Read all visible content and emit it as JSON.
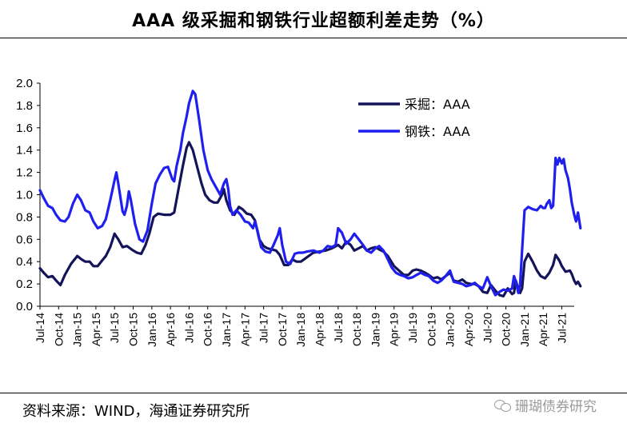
{
  "header": {
    "title": "AAA 级采掘和钢铁行业超额利差走势（%）"
  },
  "footer": {
    "source": "资料来源：WIND，海通证券研究所"
  },
  "watermark": {
    "text": "珊瑚债券研究",
    "icon": "wechat-icon"
  },
  "chart_data": {
    "type": "line",
    "title": "AAA 级采掘和钢铁行业超额利差走势（%）",
    "ylim": [
      0,
      2.0
    ],
    "yticks": [
      "0.0",
      "0.2",
      "0.4",
      "0.6",
      "0.8",
      "1.0",
      "1.2",
      "1.4",
      "1.6",
      "1.8",
      "2.0"
    ],
    "xlim": [
      0,
      86
    ],
    "xticks": [
      {
        "label": "Jul-14",
        "x": 0
      },
      {
        "label": "Oct-14",
        "x": 3
      },
      {
        "label": "Jan-15",
        "x": 6
      },
      {
        "label": "Apr-15",
        "x": 9
      },
      {
        "label": "Jul-15",
        "x": 12
      },
      {
        "label": "Oct-15",
        "x": 15
      },
      {
        "label": "Jan-16",
        "x": 18
      },
      {
        "label": "Apr-16",
        "x": 21
      },
      {
        "label": "Jul-16",
        "x": 24
      },
      {
        "label": "Oct-16",
        "x": 27
      },
      {
        "label": "Jan-17",
        "x": 30
      },
      {
        "label": "Apr-17",
        "x": 33
      },
      {
        "label": "Jul-17",
        "x": 36
      },
      {
        "label": "Oct-17",
        "x": 39
      },
      {
        "label": "Jan-18",
        "x": 42
      },
      {
        "label": "Apr-18",
        "x": 45
      },
      {
        "label": "Jul-18",
        "x": 48
      },
      {
        "label": "Oct-18",
        "x": 51
      },
      {
        "label": "Jan-19",
        "x": 54
      },
      {
        "label": "Apr-19",
        "x": 57
      },
      {
        "label": "Jul-19",
        "x": 60
      },
      {
        "label": "Oct-19",
        "x": 63
      },
      {
        "label": "Jan-20",
        "x": 66
      },
      {
        "label": "Apr-20",
        "x": 69
      },
      {
        "label": "Jul-20",
        "x": 72
      },
      {
        "label": "Oct-20",
        "x": 75
      },
      {
        "label": "Jan-21",
        "x": 78
      },
      {
        "label": "Apr-21",
        "x": 81
      },
      {
        "label": "Jul-21",
        "x": 84
      }
    ],
    "legend_position": "top-right",
    "series": [
      {
        "name": "采掘：AAA",
        "color": "#14145a",
        "points": [
          [
            0,
            0.34
          ],
          [
            0.6,
            0.3
          ],
          [
            1.3,
            0.26
          ],
          [
            2,
            0.27
          ],
          [
            2.6,
            0.23
          ],
          [
            3.3,
            0.19
          ],
          [
            4,
            0.28
          ],
          [
            5,
            0.38
          ],
          [
            6,
            0.45
          ],
          [
            6.7,
            0.42
          ],
          [
            7.3,
            0.4
          ],
          [
            8,
            0.4
          ],
          [
            8.6,
            0.36
          ],
          [
            9.3,
            0.36
          ],
          [
            10,
            0.41
          ],
          [
            10.6,
            0.45
          ],
          [
            11.3,
            0.53
          ],
          [
            12,
            0.65
          ],
          [
            12.6,
            0.6
          ],
          [
            13.3,
            0.53
          ],
          [
            14,
            0.54
          ],
          [
            15,
            0.5
          ],
          [
            15.6,
            0.48
          ],
          [
            16.3,
            0.47
          ],
          [
            17,
            0.55
          ],
          [
            17.6,
            0.65
          ],
          [
            18.3,
            0.8
          ],
          [
            19,
            0.83
          ],
          [
            20,
            0.82
          ],
          [
            21,
            0.82
          ],
          [
            21.6,
            0.84
          ],
          [
            22.3,
            1.05
          ],
          [
            23,
            1.26
          ],
          [
            23.6,
            1.42
          ],
          [
            24,
            1.47
          ],
          [
            24.6,
            1.4
          ],
          [
            25.3,
            1.25
          ],
          [
            26,
            1.1
          ],
          [
            26.6,
            1.0
          ],
          [
            27.3,
            0.95
          ],
          [
            28,
            0.93
          ],
          [
            28.6,
            0.93
          ],
          [
            29.3,
            1.0
          ],
          [
            29.6,
            1.05
          ],
          [
            30,
            0.95
          ],
          [
            30.6,
            0.86
          ],
          [
            31.3,
            0.82
          ],
          [
            32,
            0.89
          ],
          [
            32.6,
            0.87
          ],
          [
            33.3,
            0.83
          ],
          [
            34,
            0.82
          ],
          [
            34.6,
            0.77
          ],
          [
            35.3,
            0.6
          ],
          [
            36,
            0.54
          ],
          [
            36.6,
            0.52
          ],
          [
            37.3,
            0.51
          ],
          [
            38,
            0.5
          ],
          [
            38.6,
            0.46
          ],
          [
            39.3,
            0.37
          ],
          [
            40,
            0.37
          ],
          [
            40.6,
            0.42
          ],
          [
            41.3,
            0.4
          ],
          [
            42,
            0.4
          ],
          [
            43,
            0.44
          ],
          [
            44,
            0.48
          ],
          [
            45,
            0.49
          ],
          [
            46,
            0.5
          ],
          [
            47,
            0.52
          ],
          [
            48,
            0.55
          ],
          [
            48.6,
            0.52
          ],
          [
            49.3,
            0.58
          ],
          [
            50,
            0.55
          ],
          [
            50.6,
            0.5
          ],
          [
            51.3,
            0.52
          ],
          [
            52,
            0.54
          ],
          [
            52.6,
            0.5
          ],
          [
            53.3,
            0.52
          ],
          [
            54,
            0.53
          ],
          [
            54.6,
            0.51
          ],
          [
            55.3,
            0.49
          ],
          [
            56,
            0.45
          ],
          [
            57,
            0.36
          ],
          [
            58,
            0.31
          ],
          [
            58.6,
            0.28
          ],
          [
            59.3,
            0.28
          ],
          [
            60,
            0.32
          ],
          [
            60.6,
            0.33
          ],
          [
            61.3,
            0.32
          ],
          [
            62,
            0.3
          ],
          [
            62.6,
            0.28
          ],
          [
            63.3,
            0.25
          ],
          [
            64,
            0.26
          ],
          [
            64.6,
            0.24
          ],
          [
            65.3,
            0.27
          ],
          [
            66,
            0.3
          ],
          [
            66.6,
            0.23
          ],
          [
            67.3,
            0.22
          ],
          [
            68,
            0.24
          ],
          [
            68.6,
            0.21
          ],
          [
            69.3,
            0.2
          ],
          [
            70,
            0.2
          ],
          [
            70.6,
            0.18
          ],
          [
            71.3,
            0.13
          ],
          [
            72,
            0.12
          ],
          [
            72.6,
            0.19
          ],
          [
            73.3,
            0.14
          ],
          [
            74,
            0.1
          ],
          [
            74.6,
            0.09
          ],
          [
            75.3,
            0.16
          ],
          [
            76,
            0.11
          ],
          [
            76.3,
            0.12
          ],
          [
            76.6,
            0.23
          ],
          [
            77,
            0.15
          ],
          [
            77.3,
            0.12
          ],
          [
            77.6,
            0.16
          ],
          [
            78,
            0.4
          ],
          [
            78.6,
            0.47
          ],
          [
            79.3,
            0.4
          ],
          [
            80,
            0.32
          ],
          [
            80.6,
            0.27
          ],
          [
            81.3,
            0.25
          ],
          [
            82,
            0.3
          ],
          [
            82.6,
            0.37
          ],
          [
            83,
            0.46
          ],
          [
            83.6,
            0.41
          ],
          [
            84,
            0.36
          ],
          [
            84.6,
            0.31
          ],
          [
            85.3,
            0.32
          ],
          [
            85.6,
            0.29
          ],
          [
            86,
            0.23
          ],
          [
            86.3,
            0.2
          ],
          [
            86.6,
            0.22
          ],
          [
            87,
            0.18
          ]
        ]
      },
      {
        "name": "钢铁：AAA",
        "color": "#1f1ff0",
        "points": [
          [
            0,
            1.04
          ],
          [
            0.6,
            0.97
          ],
          [
            1.3,
            0.9
          ],
          [
            2,
            0.88
          ],
          [
            2.6,
            0.82
          ],
          [
            3.3,
            0.77
          ],
          [
            4,
            0.76
          ],
          [
            4.6,
            0.8
          ],
          [
            5.3,
            0.92
          ],
          [
            6,
            1.0
          ],
          [
            6.6,
            0.95
          ],
          [
            7.3,
            0.86
          ],
          [
            8,
            0.84
          ],
          [
            8.6,
            0.76
          ],
          [
            9.3,
            0.7
          ],
          [
            10,
            0.72
          ],
          [
            10.6,
            0.78
          ],
          [
            11.3,
            0.95
          ],
          [
            12,
            1.13
          ],
          [
            12.3,
            1.2
          ],
          [
            12.6,
            1.1
          ],
          [
            13.3,
            0.85
          ],
          [
            13.6,
            0.82
          ],
          [
            14,
            0.9
          ],
          [
            14.3,
            1.03
          ],
          [
            14.6,
            0.96
          ],
          [
            15.3,
            0.74
          ],
          [
            16,
            0.6
          ],
          [
            16.6,
            0.58
          ],
          [
            17.3,
            0.68
          ],
          [
            18,
            0.92
          ],
          [
            18.6,
            1.1
          ],
          [
            19.3,
            1.18
          ],
          [
            20,
            1.24
          ],
          [
            20.6,
            1.25
          ],
          [
            21.3,
            1.14
          ],
          [
            21.6,
            1.12
          ],
          [
            22,
            1.26
          ],
          [
            22.6,
            1.4
          ],
          [
            23,
            1.55
          ],
          [
            23.6,
            1.7
          ],
          [
            24,
            1.82
          ],
          [
            24.6,
            1.93
          ],
          [
            25,
            1.9
          ],
          [
            25.6,
            1.68
          ],
          [
            26.3,
            1.4
          ],
          [
            27,
            1.22
          ],
          [
            27.6,
            1.14
          ],
          [
            28.3,
            1.07
          ],
          [
            29,
            1.0
          ],
          [
            29.6,
            1.1
          ],
          [
            30,
            1.14
          ],
          [
            30.3,
            1.05
          ],
          [
            30.6,
            0.9
          ],
          [
            31,
            0.82
          ],
          [
            31.6,
            0.86
          ],
          [
            32.3,
            0.82
          ],
          [
            33,
            0.76
          ],
          [
            33.6,
            0.75
          ],
          [
            34.3,
            0.7
          ],
          [
            34.6,
            0.76
          ],
          [
            35,
            0.68
          ],
          [
            35.6,
            0.53
          ],
          [
            36.3,
            0.49
          ],
          [
            37,
            0.48
          ],
          [
            37.6,
            0.55
          ],
          [
            38.3,
            0.64
          ],
          [
            38.6,
            0.7
          ],
          [
            39,
            0.55
          ],
          [
            39.6,
            0.4
          ],
          [
            40.3,
            0.38
          ],
          [
            41,
            0.47
          ],
          [
            41.6,
            0.48
          ],
          [
            42.3,
            0.48
          ],
          [
            43,
            0.49
          ],
          [
            44,
            0.5
          ],
          [
            45,
            0.48
          ],
          [
            45.6,
            0.5
          ],
          [
            46.3,
            0.54
          ],
          [
            47,
            0.53
          ],
          [
            47.6,
            0.55
          ],
          [
            48,
            0.7
          ],
          [
            48.6,
            0.66
          ],
          [
            49.3,
            0.56
          ],
          [
            50,
            0.6
          ],
          [
            50.6,
            0.65
          ],
          [
            51.3,
            0.6
          ],
          [
            52,
            0.55
          ],
          [
            52.6,
            0.5
          ],
          [
            53.3,
            0.48
          ],
          [
            54,
            0.52
          ],
          [
            54.6,
            0.54
          ],
          [
            55.3,
            0.5
          ],
          [
            56,
            0.42
          ],
          [
            56.6,
            0.35
          ],
          [
            57.3,
            0.3
          ],
          [
            58,
            0.28
          ],
          [
            58.6,
            0.27
          ],
          [
            59.3,
            0.25
          ],
          [
            60,
            0.26
          ],
          [
            60.6,
            0.28
          ],
          [
            61.3,
            0.3
          ],
          [
            62,
            0.28
          ],
          [
            62.6,
            0.27
          ],
          [
            63.3,
            0.23
          ],
          [
            64,
            0.21
          ],
          [
            64.6,
            0.23
          ],
          [
            65.3,
            0.27
          ],
          [
            66,
            0.32
          ],
          [
            66.6,
            0.22
          ],
          [
            67.3,
            0.21
          ],
          [
            68,
            0.2
          ],
          [
            68.6,
            0.18
          ],
          [
            69.3,
            0.19
          ],
          [
            70,
            0.21
          ],
          [
            70.6,
            0.18
          ],
          [
            71.3,
            0.16
          ],
          [
            72,
            0.26
          ],
          [
            72.6,
            0.18
          ],
          [
            73.3,
            0.1
          ],
          [
            74,
            0.13
          ],
          [
            74.6,
            0.15
          ],
          [
            75.3,
            0.14
          ],
          [
            76,
            0.16
          ],
          [
            76.3,
            0.27
          ],
          [
            76.6,
            0.22
          ],
          [
            77,
            0.12
          ],
          [
            77.3,
            0.2
          ],
          [
            77.6,
            0.5
          ],
          [
            78,
            0.86
          ],
          [
            78.6,
            0.89
          ],
          [
            79.3,
            0.87
          ],
          [
            80,
            0.86
          ],
          [
            80.6,
            0.9
          ],
          [
            81,
            0.88
          ],
          [
            81.3,
            0.88
          ],
          [
            81.6,
            0.92
          ],
          [
            82,
            0.95
          ],
          [
            82.3,
            0.88
          ],
          [
            82.6,
            0.9
          ],
          [
            83,
            1.33
          ],
          [
            83.3,
            1.27
          ],
          [
            83.6,
            1.33
          ],
          [
            84,
            1.28
          ],
          [
            84.3,
            1.32
          ],
          [
            84.6,
            1.22
          ],
          [
            85,
            1.15
          ],
          [
            85.3,
            1.05
          ],
          [
            85.6,
            0.93
          ],
          [
            86,
            0.82
          ],
          [
            86.3,
            0.76
          ],
          [
            86.6,
            0.84
          ],
          [
            87,
            0.7
          ]
        ]
      }
    ]
  }
}
